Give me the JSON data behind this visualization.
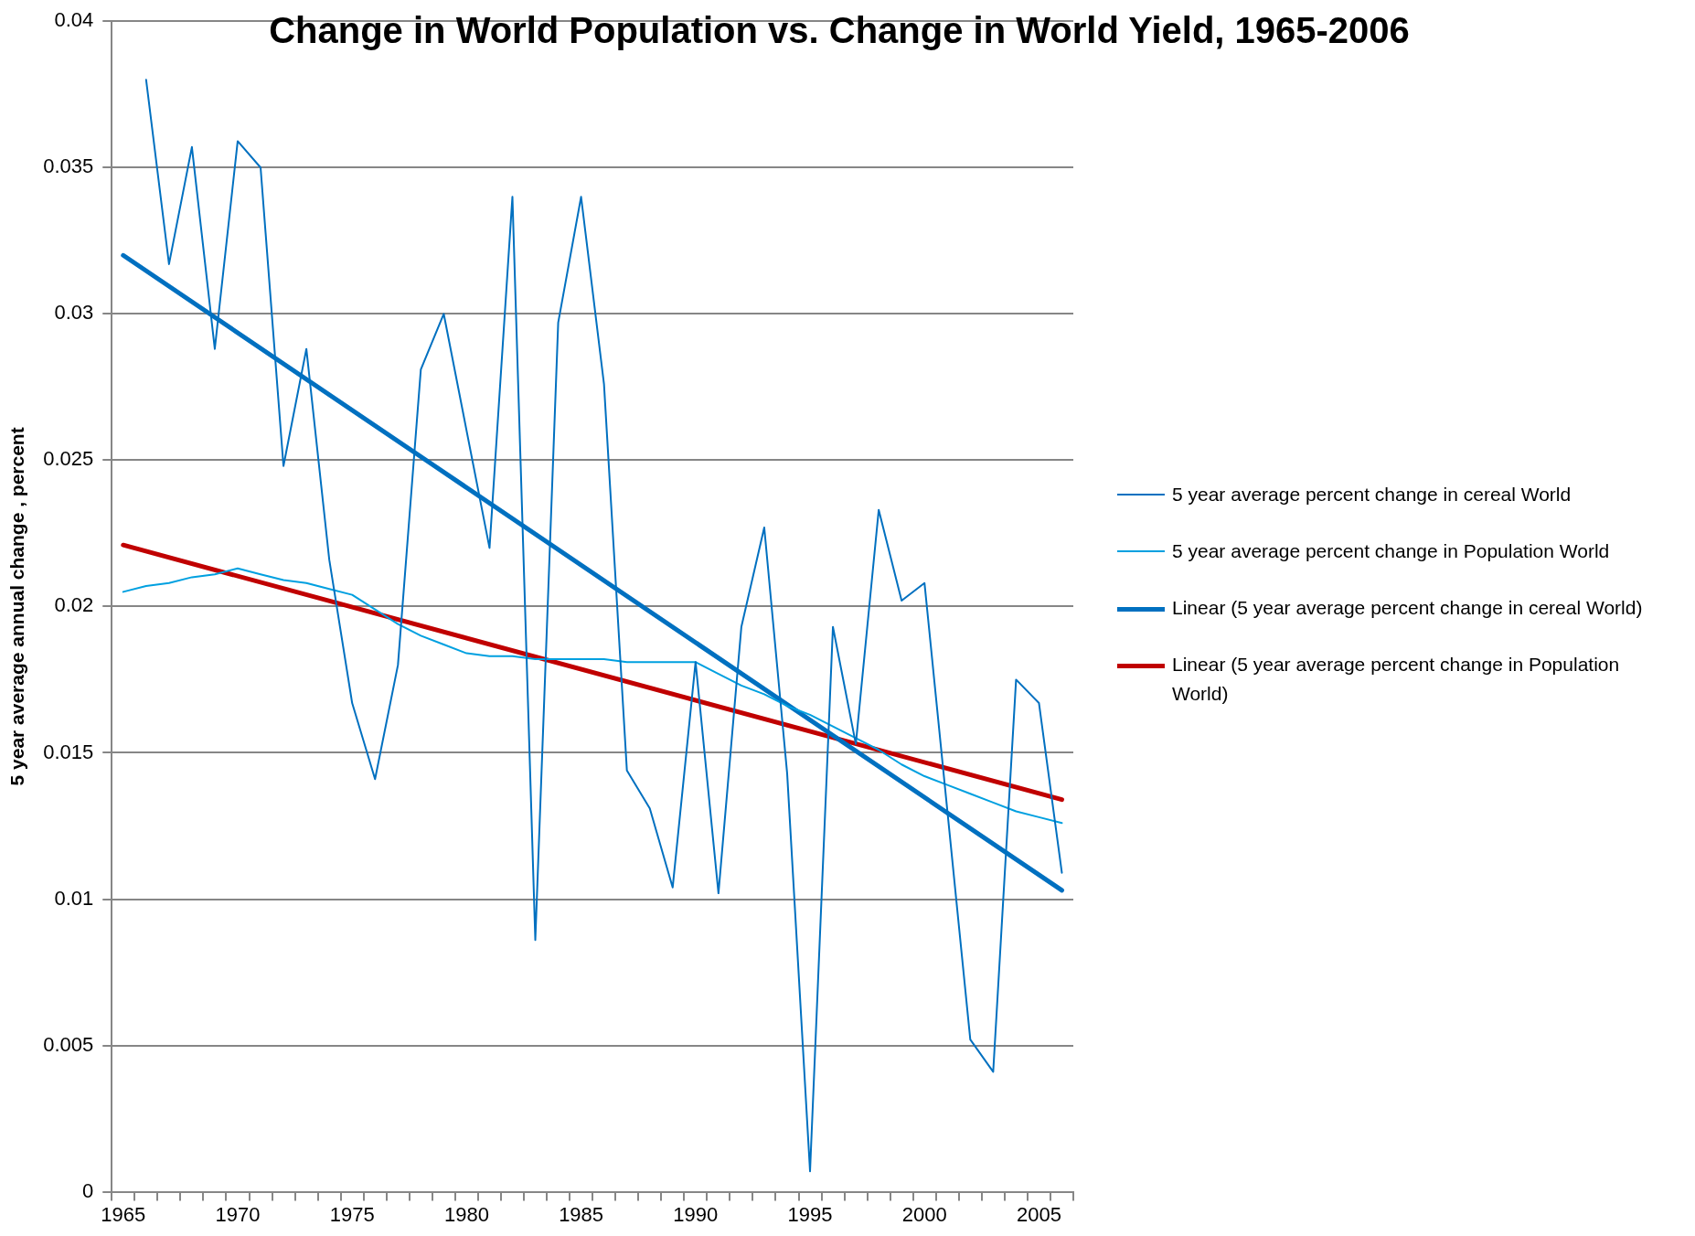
{
  "chart_data": {
    "type": "line",
    "title": "Change in World Population vs. Change in World Yield, 1965-2006",
    "ylabel": "5 year average annual change , percent",
    "x": [
      1965,
      1966,
      1967,
      1968,
      1969,
      1970,
      1971,
      1972,
      1973,
      1974,
      1975,
      1976,
      1977,
      1978,
      1979,
      1980,
      1981,
      1982,
      1983,
      1984,
      1985,
      1986,
      1987,
      1988,
      1989,
      1990,
      1991,
      1992,
      1993,
      1994,
      1995,
      1996,
      1997,
      1998,
      1999,
      2000,
      2001,
      2002,
      2003,
      2004,
      2005,
      2006
    ],
    "xlim": [
      1964.5,
      2006.5
    ],
    "xticks": [
      {
        "value": 1964.5,
        "label": null
      },
      1965,
      {
        "value": 1965.5,
        "label": null
      },
      {
        "value": 1966.5,
        "label": null
      },
      {
        "value": 1967.5,
        "label": null
      },
      {
        "value": 1968.5,
        "label": null
      },
      {
        "value": 1969.5,
        "label": null
      },
      1970,
      {
        "value": 1970.5,
        "label": null
      },
      {
        "value": 1971.5,
        "label": null
      },
      {
        "value": 1972.5,
        "label": null
      },
      {
        "value": 1973.5,
        "label": null
      },
      {
        "value": 1974.5,
        "label": null
      },
      1975,
      {
        "value": 1975.5,
        "label": null
      },
      {
        "value": 1976.5,
        "label": null
      },
      {
        "value": 1977.5,
        "label": null
      },
      {
        "value": 1978.5,
        "label": null
      },
      {
        "value": 1979.5,
        "label": null
      },
      1980,
      {
        "value": 1980.5,
        "label": null
      },
      {
        "value": 1981.5,
        "label": null
      },
      {
        "value": 1982.5,
        "label": null
      },
      {
        "value": 1983.5,
        "label": null
      },
      {
        "value": 1984.5,
        "label": null
      },
      1985,
      {
        "value": 1985.5,
        "label": null
      },
      {
        "value": 1986.5,
        "label": null
      },
      {
        "value": 1987.5,
        "label": null
      },
      {
        "value": 1988.5,
        "label": null
      },
      {
        "value": 1989.5,
        "label": null
      },
      1990,
      {
        "value": 1990.5,
        "label": null
      },
      {
        "value": 1991.5,
        "label": null
      },
      {
        "value": 1992.5,
        "label": null
      },
      {
        "value": 1993.5,
        "label": null
      },
      {
        "value": 1994.5,
        "label": null
      },
      1995,
      {
        "value": 1995.5,
        "label": null
      },
      {
        "value": 1996.5,
        "label": null
      },
      {
        "value": 1997.5,
        "label": null
      },
      {
        "value": 1998.5,
        "label": null
      },
      {
        "value": 1999.5,
        "label": null
      },
      2000,
      {
        "value": 2000.5,
        "label": null
      },
      {
        "value": 2001.5,
        "label": null
      },
      {
        "value": 2002.5,
        "label": null
      },
      {
        "value": 2003.5,
        "label": null
      },
      {
        "value": 2004.5,
        "label": null
      },
      2005,
      {
        "value": 2005.5,
        "label": null
      },
      {
        "value": 2006.5,
        "label": null
      }
    ],
    "ylim": [
      0,
      0.04
    ],
    "yticks": [
      0,
      0.005,
      0.01,
      0.015,
      0.02,
      0.025,
      0.03,
      0.035,
      0.04
    ],
    "grid": "y",
    "legend": "right",
    "marker": "none",
    "line_style": "solid",
    "series": [
      {
        "name": "5 year average percent change in cereal World",
        "color": "#0070c0",
        "values": [
          null,
          0.038,
          0.0317,
          0.0357,
          0.0288,
          0.0359,
          0.035,
          0.0248,
          0.0288,
          0.0216,
          0.0167,
          0.0141,
          0.018,
          0.0281,
          0.03,
          0.026,
          0.022,
          0.034,
          0.0086,
          0.0297,
          0.034,
          0.0276,
          0.0144,
          0.0131,
          0.0104,
          0.0181,
          0.0102,
          0.0193,
          0.0227,
          0.0143,
          0.0007,
          0.0193,
          0.0153,
          0.0233,
          0.0202,
          0.0208,
          0.013,
          0.0052,
          0.0041,
          0.0175,
          0.0167,
          0.0109
        ]
      },
      {
        "name": "5 year average percent change in Population World",
        "color": "#00a0e0",
        "values": [
          0.0205,
          0.0207,
          0.0208,
          0.021,
          0.0211,
          0.0213,
          0.0211,
          0.0209,
          0.0208,
          0.0206,
          0.0204,
          0.0199,
          0.0194,
          0.019,
          0.0187,
          0.0184,
          0.0183,
          0.0183,
          0.0182,
          0.0182,
          0.0182,
          0.0182,
          0.0181,
          0.0181,
          0.0181,
          0.0181,
          0.0177,
          0.0173,
          0.017,
          0.0166,
          0.0163,
          0.0159,
          0.0155,
          0.0151,
          0.0146,
          0.0142,
          0.0139,
          0.0136,
          0.0133,
          0.013,
          0.0128,
          0.0126
        ]
      },
      {
        "name": "Linear (5 year average percent change in cereal World)",
        "type": "line",
        "color": "#0070c0",
        "values": [
          0.032,
          null,
          null,
          null,
          null,
          null,
          null,
          null,
          null,
          null,
          null,
          null,
          null,
          null,
          null,
          null,
          null,
          null,
          null,
          null,
          null,
          null,
          null,
          null,
          null,
          null,
          null,
          null,
          null,
          null,
          null,
          null,
          null,
          null,
          null,
          null,
          null,
          null,
          null,
          null,
          null,
          0.0103
        ]
      },
      {
        "name": "Linear (5 year average percent change in Population World)",
        "type": "line",
        "color": "#c00000",
        "values": [
          0.0221,
          null,
          null,
          null,
          null,
          null,
          null,
          null,
          null,
          null,
          null,
          null,
          null,
          null,
          null,
          null,
          null,
          null,
          null,
          null,
          null,
          null,
          null,
          null,
          null,
          null,
          null,
          null,
          null,
          null,
          null,
          null,
          null,
          null,
          null,
          null,
          null,
          null,
          null,
          null,
          null,
          0.0134
        ]
      }
    ]
  }
}
